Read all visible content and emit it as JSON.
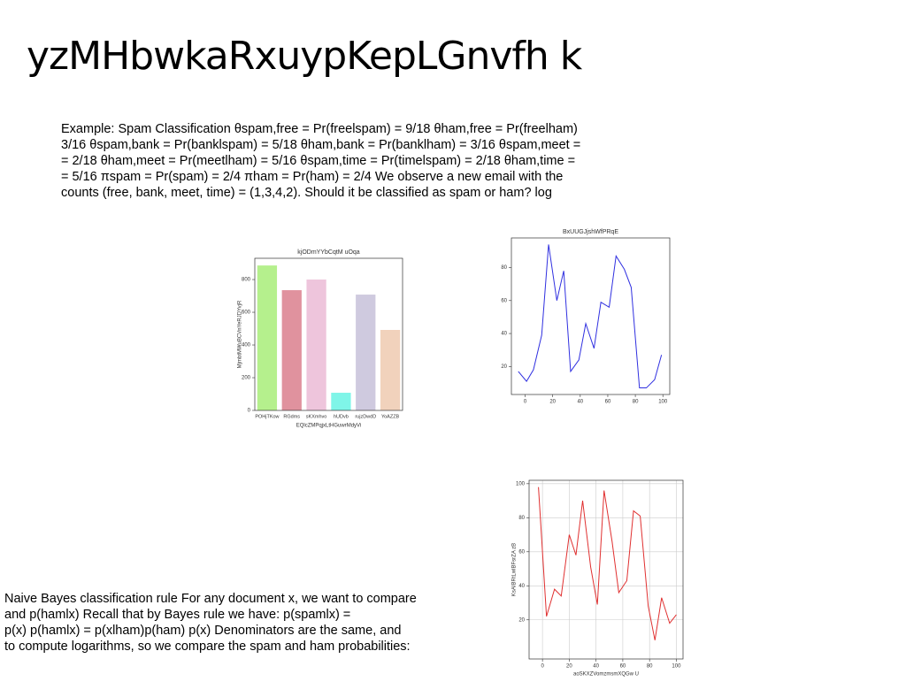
{
  "slide": {
    "title": "yzMHbwkaRxuypKepLGnvfh k",
    "example": [
      "Example: Spam Classification θspam,free = Pr(freelspam) = 9/18 θham,free = Pr(freelham)",
      "3/16 θspam,bank = Pr(banklspam) = 5/18 θham,bank = Pr(banklham) = 3/16 θspam,meet =",
      "= 2/18 θham,meet = Pr(meetlham) = 5/16 θspam,time = Pr(timelspam) = 2/18 θham,time =",
      "= 5/16 πspam = Pr(spam) = 2/4 πham = Pr(ham) = 2/4 We observe a new email with the",
      "counts (free, bank, meet, time) = (1,3,4,2). Should it be classified as spam or ham? log"
    ],
    "rule": [
      "Naive Bayes classification rule For any document x, we want to compare",
      "and p(hamlx) Recall that by Bayes rule we have: p(spamlx) =",
      "p(x) p(hamlx) = p(xlham)p(ham) p(x) Denominators are the same, and",
      "to compute logarithms, so we compare the spam and ham probabilities:"
    ]
  },
  "chart_data": [
    {
      "type": "bar",
      "title": "kjODmYYbCqtM uOqa",
      "xlabel": "EQlcZMPqjxLtHGuwrMdyVi",
      "ylabel": "MjmbtMWuBCVnYeRJDYvjR",
      "categories": [
        "POHjTKow",
        "RGdms",
        "sKXmhvo",
        "hUDvb",
        "rujzDwdD",
        "YoAZZB"
      ],
      "values": [
        886,
        735,
        800,
        108,
        708,
        492
      ],
      "colors": [
        "#b5f08d",
        "#e0929e",
        "#eec5dc",
        "#7ff5e8",
        "#cfcadf",
        "#f1d2bc"
      ],
      "ylim": [
        0,
        930
      ],
      "yticks": [
        0,
        200,
        400,
        600,
        800
      ],
      "grid": false
    },
    {
      "type": "line",
      "title": "BxUUGJjshWfPRqE",
      "color": "#3030e0",
      "x": [
        -5,
        1,
        6,
        12,
        17,
        23,
        28,
        33,
        39,
        44,
        50,
        55,
        61,
        66,
        72,
        77,
        83,
        88,
        94,
        99
      ],
      "values": [
        17,
        11,
        18,
        39,
        94,
        60,
        78,
        17,
        24,
        46,
        31,
        59,
        56,
        87,
        79,
        68,
        7,
        7,
        12,
        27
      ],
      "xlim": [
        -10,
        105
      ],
      "xticks": [
        0,
        20,
        40,
        60,
        80,
        100
      ],
      "ylim": [
        3,
        98
      ],
      "yticks": [
        20,
        40,
        60,
        80
      ],
      "grid": false
    },
    {
      "type": "line",
      "xlabel": "aoSKXZVomzmsmXQGw U",
      "ylabel": "KsAIBRtLwlBFsrZA zB",
      "color": "#e03030",
      "x": [
        -3,
        3,
        9,
        14,
        20,
        25,
        30,
        36,
        41,
        46,
        52,
        57,
        63,
        68,
        73,
        79,
        84,
        89,
        95,
        100
      ],
      "values": [
        98,
        22,
        38,
        34,
        70,
        58,
        90,
        51,
        29,
        96,
        66,
        36,
        43,
        84,
        81,
        28,
        8,
        33,
        18,
        23
      ],
      "xlim": [
        -10,
        105
      ],
      "xticks": [
        0,
        20,
        40,
        60,
        80,
        100
      ],
      "ylim": [
        -3,
        102
      ],
      "yticks": [
        20,
        40,
        60,
        80,
        100
      ],
      "grid": true
    }
  ]
}
